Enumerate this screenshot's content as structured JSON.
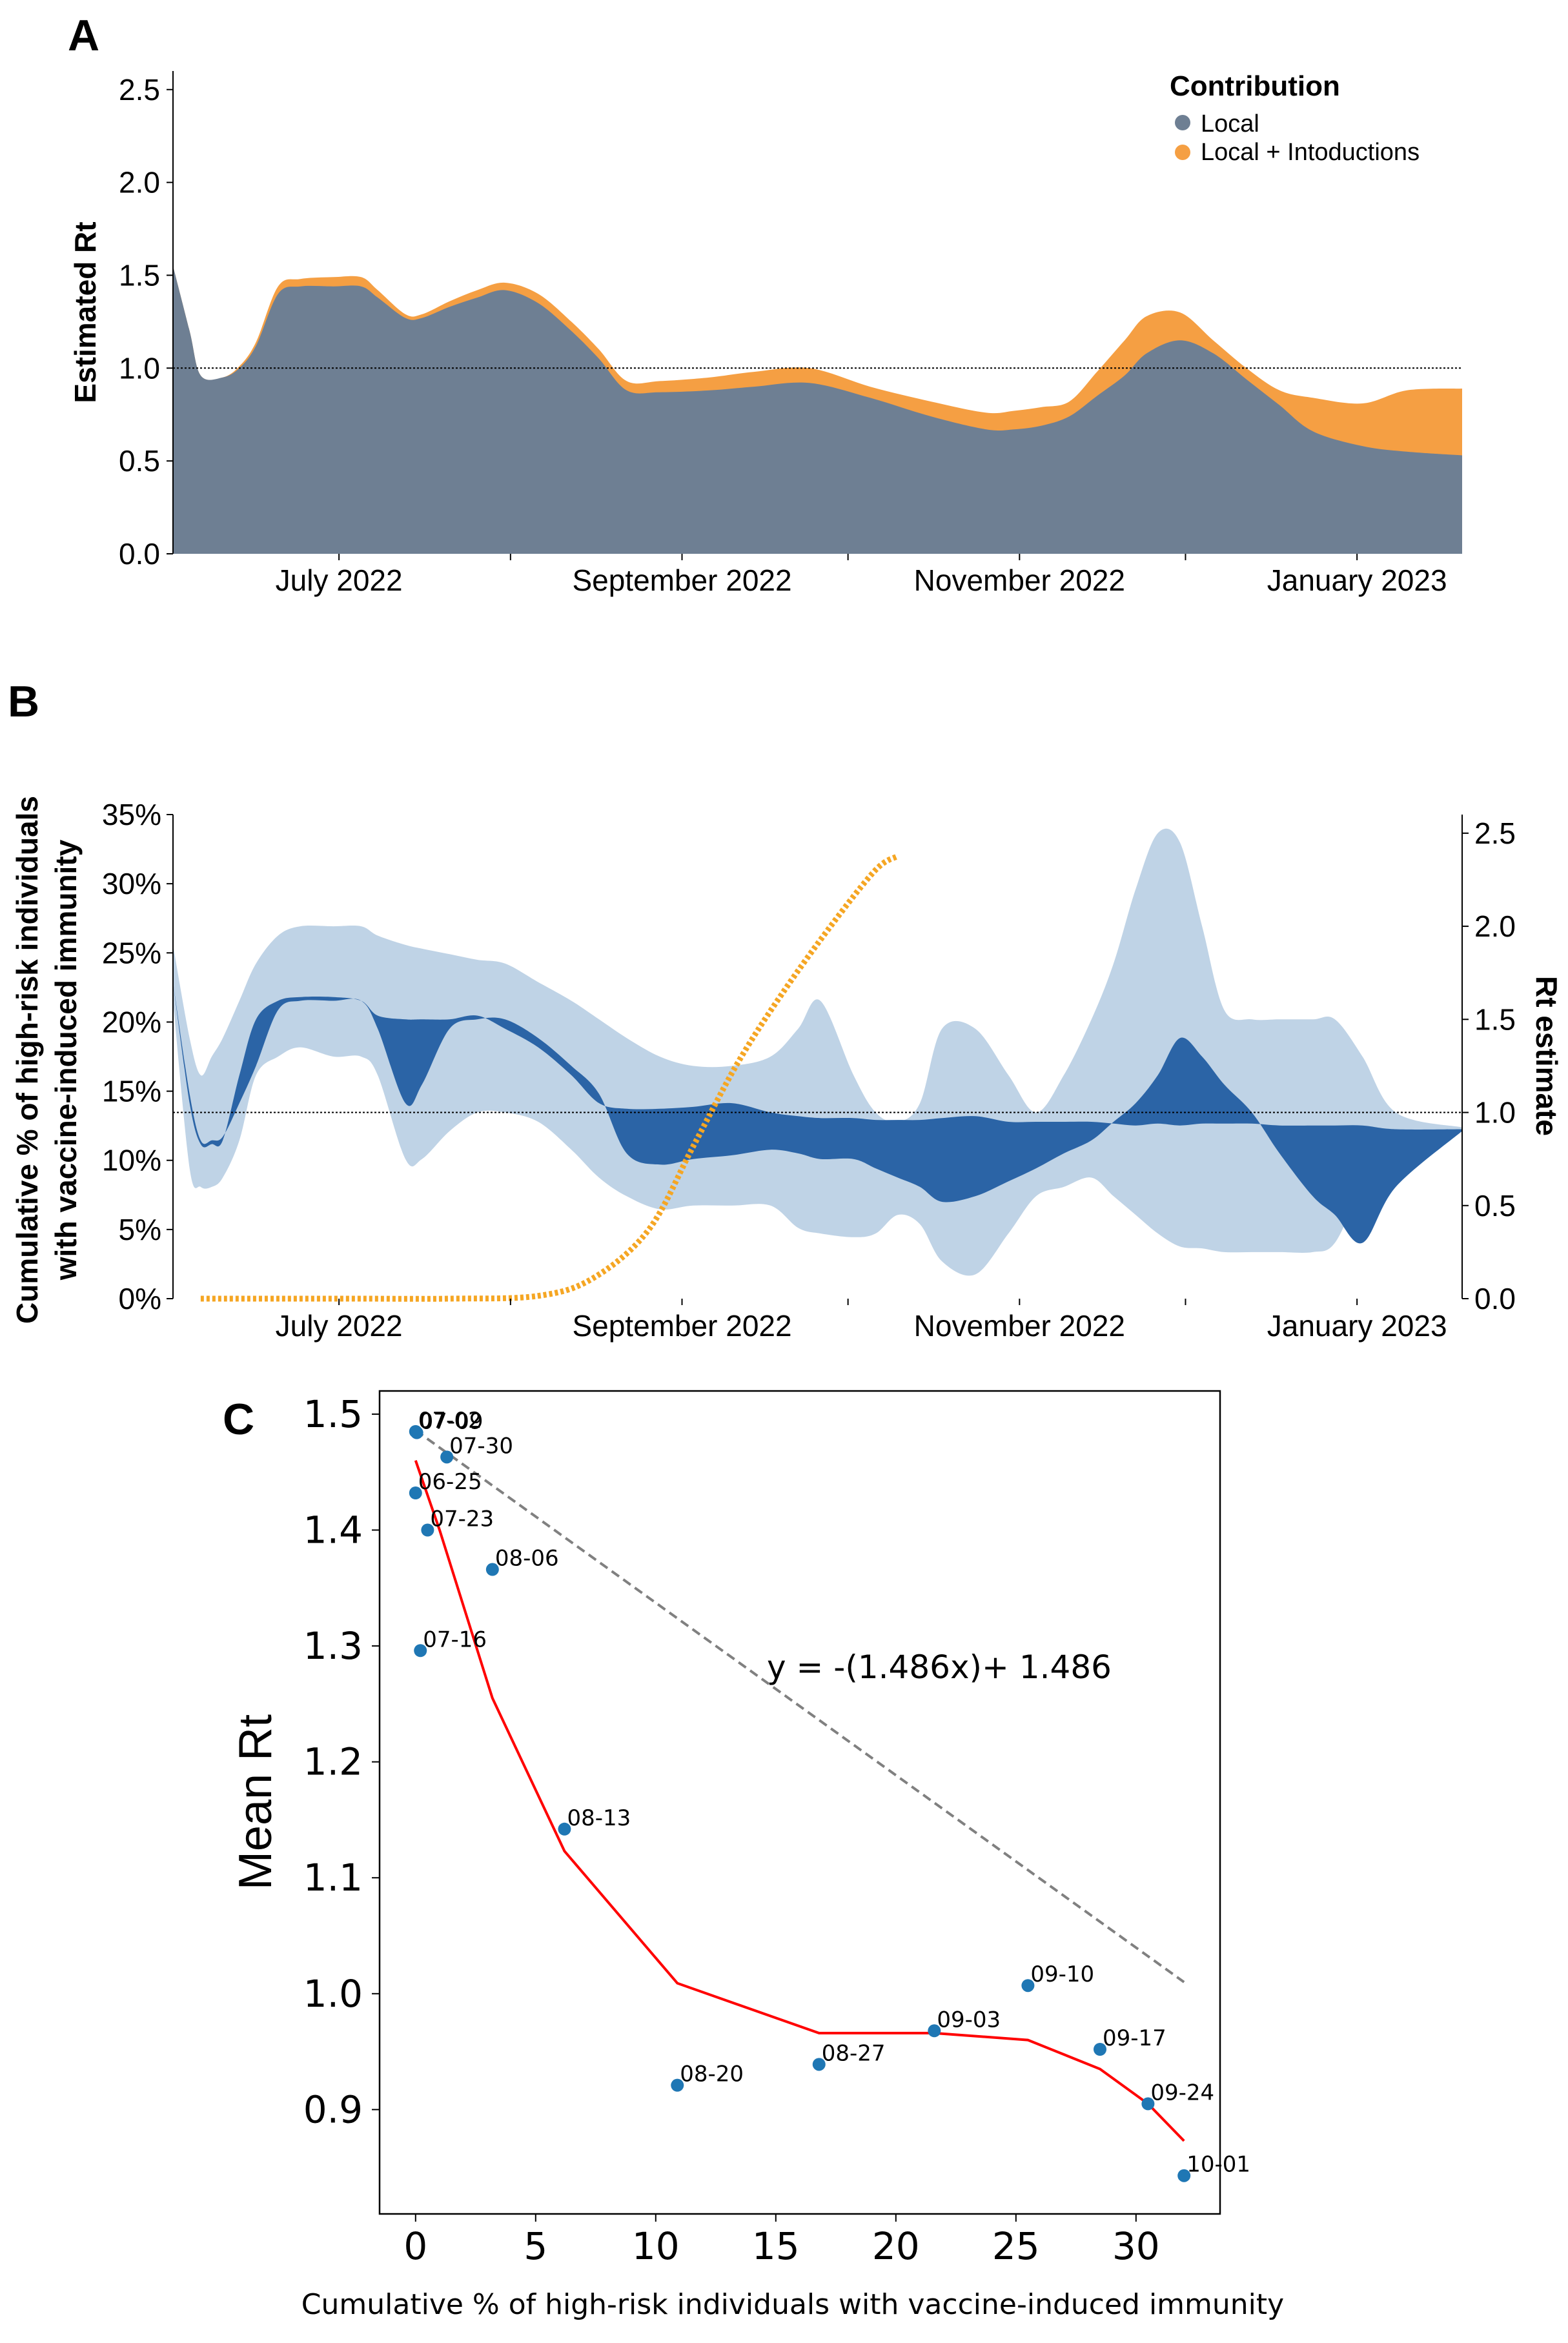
{
  "panels": {
    "a": {
      "letter": "A",
      "ylabel": "Estimated Rt",
      "yticks": [
        "0.0",
        "0.5",
        "1.0",
        "1.5",
        "2.0",
        "2.5"
      ],
      "xticks": [
        "July 2022",
        "September 2022",
        "November 2022",
        "January 2023"
      ],
      "legend_title": "Contribution",
      "legend_items": [
        "Local",
        "Local + Intoductions"
      ],
      "colors": {
        "local": "#6e7f93",
        "intro": "#f59f43"
      }
    },
    "b": {
      "letter": "B",
      "ylabel_left_1": "Cumulative % of high-risk individuals",
      "ylabel_left_2": "with vaccine-induced immunity",
      "ylabel_right": "Rt estimate",
      "yticks_left": [
        "0%",
        "5%",
        "10%",
        "15%",
        "20%",
        "25%",
        "30%",
        "35%"
      ],
      "yticks_right": [
        "0.0",
        "0.5",
        "1.0",
        "1.5",
        "2.0",
        "2.5"
      ],
      "xticks": [
        "July 2022",
        "September 2022",
        "November 2022",
        "January 2023"
      ],
      "colors": {
        "ci95": "#bfd3e6",
        "ci50": "#2b64a6",
        "vaccine": "#f5a623"
      }
    },
    "c": {
      "letter": "C",
      "ylabel": "Mean Rt",
      "xlabel": "Cumulative % of high-risk individuals with vaccine-induced immunity",
      "yticks": [
        "0.9",
        "1.0",
        "1.1",
        "1.2",
        "1.3",
        "1.4",
        "1.5"
      ],
      "xticks": [
        "0",
        "5",
        "10",
        "15",
        "20",
        "25",
        "30"
      ],
      "equation": "y = -(1.486x)+ 1.486",
      "colors": {
        "points": "#1f77b4",
        "fit": "#ff0000",
        "ref": "#808080"
      }
    }
  },
  "chart_data": [
    {
      "type": "area",
      "panel": "A",
      "ylabel": "Estimated Rt",
      "ylim": [
        0,
        2.6
      ],
      "x_range": [
        "2022-06-01",
        "2023-01-20"
      ],
      "reference_line": 1.0,
      "legend_position": "top-right",
      "x": [
        "2022-06-01",
        "2022-06-04",
        "2022-06-06",
        "2022-06-10",
        "2022-06-13",
        "2022-06-16",
        "2022-06-20",
        "2022-06-24",
        "2022-06-30",
        "2022-07-05",
        "2022-07-08",
        "2022-07-13",
        "2022-07-16",
        "2022-07-21",
        "2022-07-26",
        "2022-07-31",
        "2022-08-06",
        "2022-08-12",
        "2022-08-17",
        "2022-08-22",
        "2022-08-28",
        "2022-09-06",
        "2022-09-14",
        "2022-09-24",
        "2022-10-05",
        "2022-10-16",
        "2022-10-26",
        "2022-10-31",
        "2022-11-05",
        "2022-11-10",
        "2022-11-15",
        "2022-11-20",
        "2022-11-24",
        "2022-11-30",
        "2022-12-06",
        "2022-12-12",
        "2022-12-18",
        "2022-12-24",
        "2023-01-02",
        "2023-01-10",
        "2023-01-20"
      ],
      "series": [
        {
          "name": "Local",
          "values": [
            1.55,
            1.2,
            0.96,
            0.95,
            1.0,
            1.12,
            1.4,
            1.44,
            1.44,
            1.44,
            1.38,
            1.27,
            1.27,
            1.33,
            1.38,
            1.42,
            1.35,
            1.2,
            1.05,
            0.88,
            0.87,
            0.88,
            0.9,
            0.92,
            0.84,
            0.74,
            0.67,
            0.67,
            0.69,
            0.74,
            0.85,
            0.96,
            1.08,
            1.15,
            1.08,
            0.94,
            0.8,
            0.66,
            0.58,
            0.55,
            0.53
          ]
        },
        {
          "name": "Local + Intoductions",
          "values": [
            1.55,
            1.2,
            0.96,
            0.95,
            1.01,
            1.14,
            1.44,
            1.48,
            1.49,
            1.49,
            1.42,
            1.29,
            1.29,
            1.36,
            1.42,
            1.46,
            1.4,
            1.25,
            1.1,
            0.93,
            0.93,
            0.95,
            0.98,
            1.0,
            0.9,
            0.82,
            0.76,
            0.77,
            0.79,
            0.82,
            0.98,
            1.15,
            1.28,
            1.3,
            1.15,
            1.0,
            0.88,
            0.84,
            0.81,
            0.88,
            0.89
          ]
        }
      ]
    },
    {
      "type": "area",
      "panel": "B",
      "ylabel_left": "Cumulative % of high-risk individuals with vaccine-induced immunity",
      "ylabel_right": "Rt estimate",
      "ylim_left": [
        0,
        35
      ],
      "ylim_right": [
        0,
        2.6
      ],
      "reference_line_right": 1.0,
      "x": [
        "2022-06-01",
        "2022-06-04",
        "2022-06-06",
        "2022-06-08",
        "2022-06-10",
        "2022-06-13",
        "2022-06-16",
        "2022-06-20",
        "2022-06-24",
        "2022-06-30",
        "2022-07-05",
        "2022-07-08",
        "2022-07-13",
        "2022-07-16",
        "2022-07-21",
        "2022-07-26",
        "2022-07-31",
        "2022-08-06",
        "2022-08-12",
        "2022-08-17",
        "2022-08-22",
        "2022-08-28",
        "2022-09-03",
        "2022-09-10",
        "2022-09-17",
        "2022-09-22",
        "2022-09-26",
        "2022-10-02",
        "2022-10-06",
        "2022-10-10",
        "2022-10-14",
        "2022-10-18",
        "2022-10-24",
        "2022-10-30",
        "2022-11-04",
        "2022-11-09",
        "2022-11-14",
        "2022-11-18",
        "2022-11-22",
        "2022-11-26",
        "2022-11-30",
        "2022-12-04",
        "2022-12-08",
        "2022-12-13",
        "2022-12-18",
        "2022-12-24",
        "2022-12-28",
        "2023-01-02",
        "2023-01-08",
        "2023-01-20"
      ],
      "series": [
        {
          "name": "",
          "values": [
            1.9,
            1.4,
            1.2,
            1.3,
            1.4,
            1.6,
            1.8,
            1.95,
            2.0,
            2.0,
            2.0,
            1.95,
            1.9,
            1.88,
            1.85,
            1.82,
            1.8,
            1.7,
            1.6,
            1.5,
            1.4,
            1.3,
            1.25,
            1.25,
            1.3,
            1.45,
            1.6,
            1.2,
            1.0,
            0.95,
            1.05,
            1.45,
            1.45,
            1.2,
            1.0,
            1.2,
            1.5,
            1.8,
            2.2,
            2.5,
            2.45,
            2.0,
            1.55,
            1.5,
            1.5,
            1.5,
            1.5,
            1.3,
            1.0,
            0.92
          ]
        },
        {
          "name": "",
          "values": [
            1.7,
            1.1,
            0.85,
            0.85,
            0.87,
            1.05,
            1.25,
            1.55,
            1.6,
            1.6,
            1.6,
            1.45,
            1.05,
            1.15,
            1.45,
            1.5,
            1.5,
            1.4,
            1.25,
            1.1,
            0.78,
            0.72,
            0.75,
            0.77,
            0.8,
            0.78,
            0.75,
            0.75,
            0.7,
            0.65,
            0.6,
            0.52,
            0.55,
            0.63,
            0.7,
            0.78,
            0.85,
            0.95,
            1.05,
            1.2,
            1.4,
            1.3,
            1.15,
            1.0,
            0.78,
            0.55,
            0.45,
            0.3,
            0.6,
            0.9
          ]
        },
        {
          "name": "",
          "values": [
            1.7,
            1.05,
            0.83,
            0.83,
            0.85,
            1.2,
            1.5,
            1.6,
            1.62,
            1.62,
            1.6,
            1.52,
            1.5,
            1.5,
            1.5,
            1.52,
            1.45,
            1.35,
            1.2,
            1.05,
            1.02,
            1.02,
            1.03,
            1.05,
            1.0,
            0.98,
            0.97,
            0.97,
            0.96,
            0.96,
            0.96,
            0.97,
            0.98,
            0.95,
            0.95,
            0.95,
            0.95,
            0.94,
            0.93,
            0.94,
            0.93,
            0.94,
            0.94,
            0.94,
            0.93,
            0.93,
            0.93,
            0.93,
            0.91,
            0.91
          ]
        },
        {
          "name": "",
          "values": [
            1.6,
            0.7,
            0.6,
            0.6,
            0.65,
            0.85,
            1.2,
            1.3,
            1.35,
            1.3,
            1.3,
            1.2,
            0.75,
            0.75,
            0.9,
            1.0,
            1.0,
            0.95,
            0.8,
            0.65,
            0.55,
            0.48,
            0.5,
            0.5,
            0.5,
            0.38,
            0.35,
            0.33,
            0.35,
            0.45,
            0.4,
            0.2,
            0.13,
            0.35,
            0.55,
            0.6,
            0.65,
            0.55,
            0.45,
            0.35,
            0.28,
            0.27,
            0.25,
            0.25,
            0.25,
            0.25,
            0.3,
            0.6,
            0.85,
            0.9
          ]
        },
        {
          "name": "",
          "x": [
            "2022-06-06",
            "2022-06-20",
            "2022-07-05",
            "2022-07-21",
            "2022-08-06",
            "2022-08-16",
            "2022-08-26",
            "2022-09-03",
            "2022-09-11",
            "2022-09-19",
            "2022-09-28",
            "2022-10-06",
            "2022-10-10"
          ],
          "values": [
            0,
            0,
            0,
            0,
            0.2,
            1.5,
            5,
            11,
            17,
            22,
            27,
            31,
            32
          ]
        }
      ]
    },
    {
      "type": "scatter",
      "panel": "C",
      "xlabel": "Cumulative % of high-risk individuals with vaccine-induced immunity",
      "ylabel": "Mean Rt",
      "xlim": [
        -1.5,
        33.5
      ],
      "ylim": [
        0.81,
        1.52
      ],
      "points": [
        {
          "label": "07-02",
          "x": 0.0,
          "y": 1.485
        },
        {
          "label": "07-09",
          "x": 0.05,
          "y": 1.484
        },
        {
          "label": "07-30",
          "x": 1.3,
          "y": 1.463
        },
        {
          "label": "06-25",
          "x": 0.0,
          "y": 1.432
        },
        {
          "label": "07-23",
          "x": 0.5,
          "y": 1.4
        },
        {
          "label": "08-06",
          "x": 3.2,
          "y": 1.366
        },
        {
          "label": "07-16",
          "x": 0.2,
          "y": 1.296
        },
        {
          "label": "08-13",
          "x": 6.2,
          "y": 1.142
        },
        {
          "label": "09-10",
          "x": 25.5,
          "y": 1.007
        },
        {
          "label": "09-03",
          "x": 21.6,
          "y": 0.968
        },
        {
          "label": "09-17",
          "x": 28.5,
          "y": 0.952
        },
        {
          "label": "08-27",
          "x": 16.8,
          "y": 0.939
        },
        {
          "label": "08-20",
          "x": 10.9,
          "y": 0.921
        },
        {
          "label": "09-24",
          "x": 30.5,
          "y": 0.905
        },
        {
          "label": "10-01",
          "x": 32.0,
          "y": 0.843
        }
      ],
      "fit_line": {
        "x": [
          0.0,
          1.0,
          3.2,
          6.2,
          10.9,
          16.8,
          21.6,
          25.5,
          28.5,
          30.5,
          32.0
        ],
        "y": [
          1.46,
          1.4,
          1.255,
          1.123,
          1.009,
          0.966,
          0.966,
          0.96,
          0.935,
          0.905,
          0.873
        ]
      },
      "reference_line": {
        "x": [
          0,
          32
        ],
        "y": [
          1.486,
          1.01
        ]
      }
    }
  ]
}
